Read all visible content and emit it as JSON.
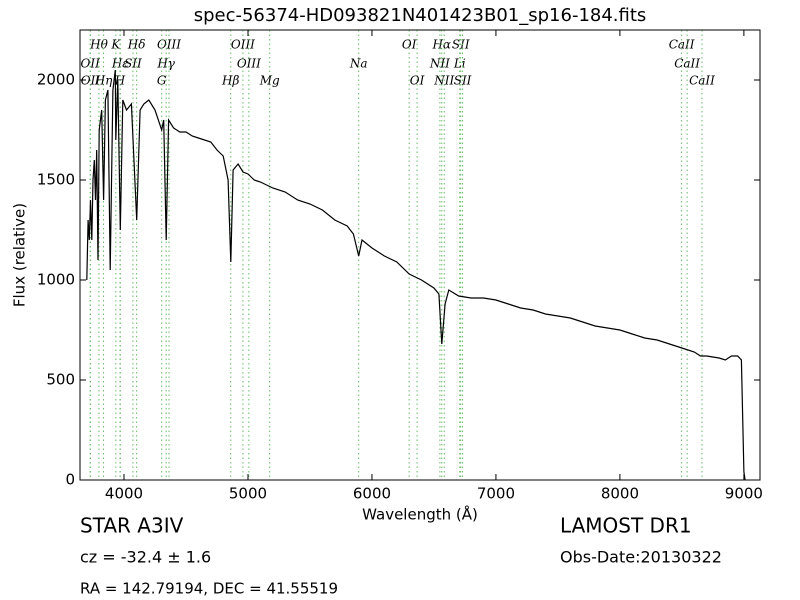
{
  "chart_data": {
    "type": "line",
    "title": "spec-56374-HD093821N401423B01_sp16-184.fits",
    "xlabel": "Wavelength (Å)",
    "ylabel": "Flux (relative)",
    "xlim": [
      3645,
      9130
    ],
    "ylim": [
      0,
      2250
    ],
    "xticks": [
      4000,
      5000,
      6000,
      7000,
      8000,
      9000
    ],
    "yticks": [
      0,
      500,
      1000,
      1500,
      2000
    ],
    "color": "#000000",
    "line_color": "#66bb66",
    "x": [
      3700,
      3710,
      3720,
      3730,
      3740,
      3750,
      3760,
      3770,
      3780,
      3790,
      3800,
      3820,
      3835,
      3850,
      3870,
      3889,
      3910,
      3930,
      3934,
      3950,
      3970,
      3990,
      4020,
      4060,
      4102,
      4130,
      4160,
      4200,
      4250,
      4304,
      4320,
      4340,
      4360,
      4400,
      4450,
      4500,
      4550,
      4600,
      4700,
      4750,
      4800,
      4840,
      4861,
      4880,
      4920,
      4960,
      5000,
      5050,
      5100,
      5200,
      5300,
      5400,
      5500,
      5600,
      5700,
      5800,
      5850,
      5893,
      5920,
      6000,
      6100,
      6200,
      6300,
      6400,
      6500,
      6540,
      6563,
      6590,
      6620,
      6700,
      6800,
      6900,
      7000,
      7100,
      7200,
      7300,
      7400,
      7500,
      7600,
      7700,
      7800,
      7900,
      8000,
      8100,
      8200,
      8300,
      8400,
      8500,
      8600,
      8650,
      8700,
      8800,
      8850,
      8900,
      8950,
      8980,
      9000,
      9010
    ],
    "values": [
      1000,
      1300,
      1200,
      1400,
      1200,
      1500,
      1600,
      1400,
      1650,
      1100,
      1750,
      1850,
      1400,
      1900,
      1950,
      1050,
      1950,
      2050,
      1700,
      2000,
      1250,
      1900,
      1850,
      1880,
      1300,
      1850,
      1880,
      1900,
      1850,
      1750,
      1800,
      1200,
      1800,
      1760,
      1740,
      1740,
      1720,
      1710,
      1690,
      1650,
      1620,
      1500,
      1090,
      1550,
      1580,
      1540,
      1530,
      1500,
      1490,
      1460,
      1440,
      1400,
      1380,
      1350,
      1300,
      1270,
      1230,
      1120,
      1200,
      1160,
      1120,
      1090,
      1030,
      1000,
      960,
      930,
      680,
      880,
      950,
      920,
      910,
      910,
      900,
      880,
      860,
      850,
      830,
      820,
      810,
      790,
      770,
      760,
      750,
      730,
      710,
      700,
      680,
      660,
      640,
      620,
      620,
      610,
      600,
      620,
      620,
      600,
      40,
      0
    ],
    "spectral_lines": [
      [
        {
          "label": "Hθ",
          "wavelength": 3798
        },
        {
          "label": "K",
          "wavelength": 3934
        },
        {
          "label": "Hδ",
          "wavelength": 4102
        },
        {
          "label": "OIII",
          "wavelength": 4363
        },
        {
          "label": "OIII",
          "wavelength": 4959
        },
        {
          "label": "OI",
          "wavelength": 6300
        },
        {
          "label": "Hα",
          "wavelength": 6563
        },
        {
          "label": "SII",
          "wavelength": 6716
        },
        {
          "label": "CaII",
          "wavelength": 8498
        }
      ],
      [
        {
          "label": "OII",
          "wavelength": 3727
        },
        {
          "label": "Hε",
          "wavelength": 3970
        },
        {
          "label": "SII",
          "wavelength": 4072
        },
        {
          "label": "Hγ",
          "wavelength": 4340
        },
        {
          "label": "OIII",
          "wavelength": 5007
        },
        {
          "label": "Na",
          "wavelength": 5893
        },
        {
          "label": "NII",
          "wavelength": 6548
        },
        {
          "label": "Li",
          "wavelength": 6708
        },
        {
          "label": "CaII",
          "wavelength": 8542
        }
      ],
      [
        {
          "label": "OII",
          "wavelength": 3729
        },
        {
          "label": "Hη",
          "wavelength": 3835
        },
        {
          "label": "H",
          "wavelength": 3968
        },
        {
          "label": "G",
          "wavelength": 4304
        },
        {
          "label": "Hβ",
          "wavelength": 4861
        },
        {
          "label": "Mg",
          "wavelength": 5175
        },
        {
          "label": "OI",
          "wavelength": 6364
        },
        {
          "label": "NII",
          "wavelength": 6583
        },
        {
          "label": "SII",
          "wavelength": 6731
        },
        {
          "label": "CaII",
          "wavelength": 8662
        }
      ]
    ]
  },
  "footer": {
    "object": "STAR   A3IV",
    "cz": "cz = -32.4 ± 1.6",
    "coords": "RA = 142.79194, DEC = 41.55519",
    "survey": "LAMOST DR1",
    "obs_date": "Obs-Date:20130322"
  }
}
